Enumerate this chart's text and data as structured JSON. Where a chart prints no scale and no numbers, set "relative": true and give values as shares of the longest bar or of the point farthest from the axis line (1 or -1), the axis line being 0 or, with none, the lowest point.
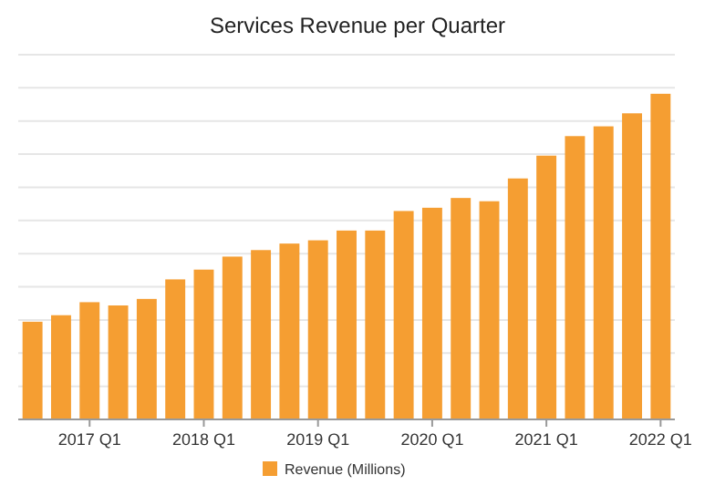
{
  "chart_data": {
    "type": "bar",
    "title": "Services Revenue per Quarter",
    "relative": true,
    "grid": "y",
    "legend": "bottom",
    "categories": [
      null,
      null,
      "2017 Q1",
      null,
      null,
      null,
      "2018 Q1",
      null,
      null,
      null,
      "2019 Q1",
      null,
      null,
      null,
      "2020 Q1",
      null,
      null,
      null,
      "2021 Q1",
      null,
      null,
      null,
      "2022 Q1"
    ],
    "series": [
      {
        "name": "Revenue (Millions)",
        "color": "#f59e32",
        "values": [
          0.3,
          0.32,
          0.36,
          0.35,
          0.37,
          0.43,
          0.46,
          0.5,
          0.52,
          0.54,
          0.55,
          0.58,
          0.58,
          0.64,
          0.65,
          0.68,
          0.67,
          0.74,
          0.81,
          0.87,
          0.9,
          0.94,
          1
        ]
      }
    ]
  }
}
